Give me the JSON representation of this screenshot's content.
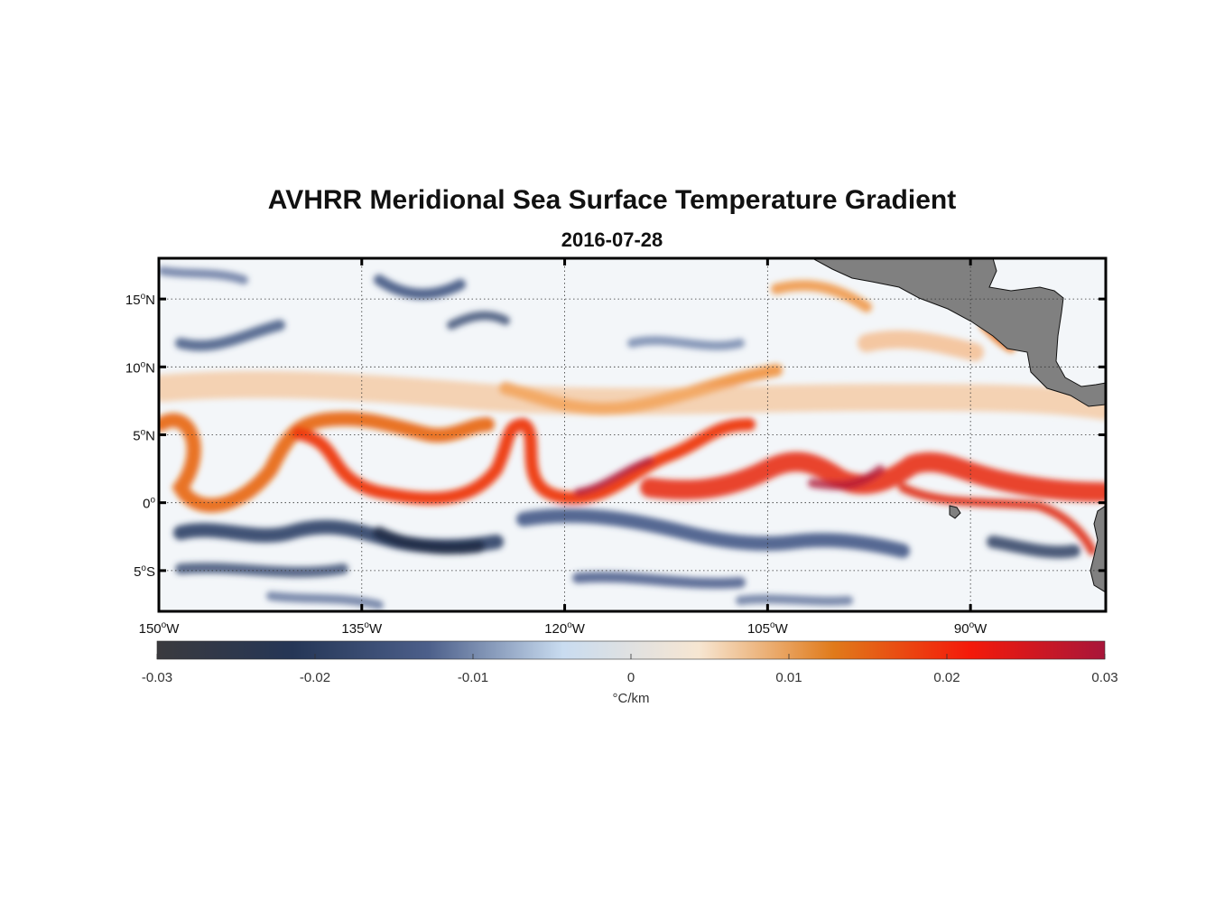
{
  "title": "AVHRR Meridional Sea Surface Temperature Gradient",
  "subtitle": "2016-07-28",
  "map": {
    "lon_range": [
      -150,
      -80
    ],
    "lat_range": [
      -8,
      18
    ],
    "lat_ticks": [
      {
        "value": 15,
        "num": "15",
        "hemi": "N"
      },
      {
        "value": 10,
        "num": "10",
        "hemi": "N"
      },
      {
        "value": 5,
        "num": "5",
        "hemi": "N"
      },
      {
        "value": 0,
        "num": "0",
        "hemi": ""
      },
      {
        "value": -5,
        "num": "5",
        "hemi": "S"
      }
    ],
    "lon_ticks": [
      {
        "value": -150,
        "num": "150",
        "hemi": "W"
      },
      {
        "value": -135,
        "num": "135",
        "hemi": "W"
      },
      {
        "value": -120,
        "num": "120",
        "hemi": "W"
      },
      {
        "value": -105,
        "num": "105",
        "hemi": "W"
      },
      {
        "value": -90,
        "num": "90",
        "hemi": "W"
      }
    ],
    "grid": true,
    "land_color": "#808080"
  },
  "colorbar": {
    "range": [
      -0.03,
      0.03
    ],
    "ticks": [
      "-0.03",
      "-0.02",
      "-0.01",
      "0",
      "0.01",
      "0.02",
      "0.03"
    ],
    "units": "°C/km",
    "colors": [
      "#3a3a3e",
      "#253656",
      "#4c5f8a",
      "#c9dcf0",
      "#f7e6d2",
      "#e07a1a",
      "#f41a0a",
      "#a8163a"
    ]
  }
}
